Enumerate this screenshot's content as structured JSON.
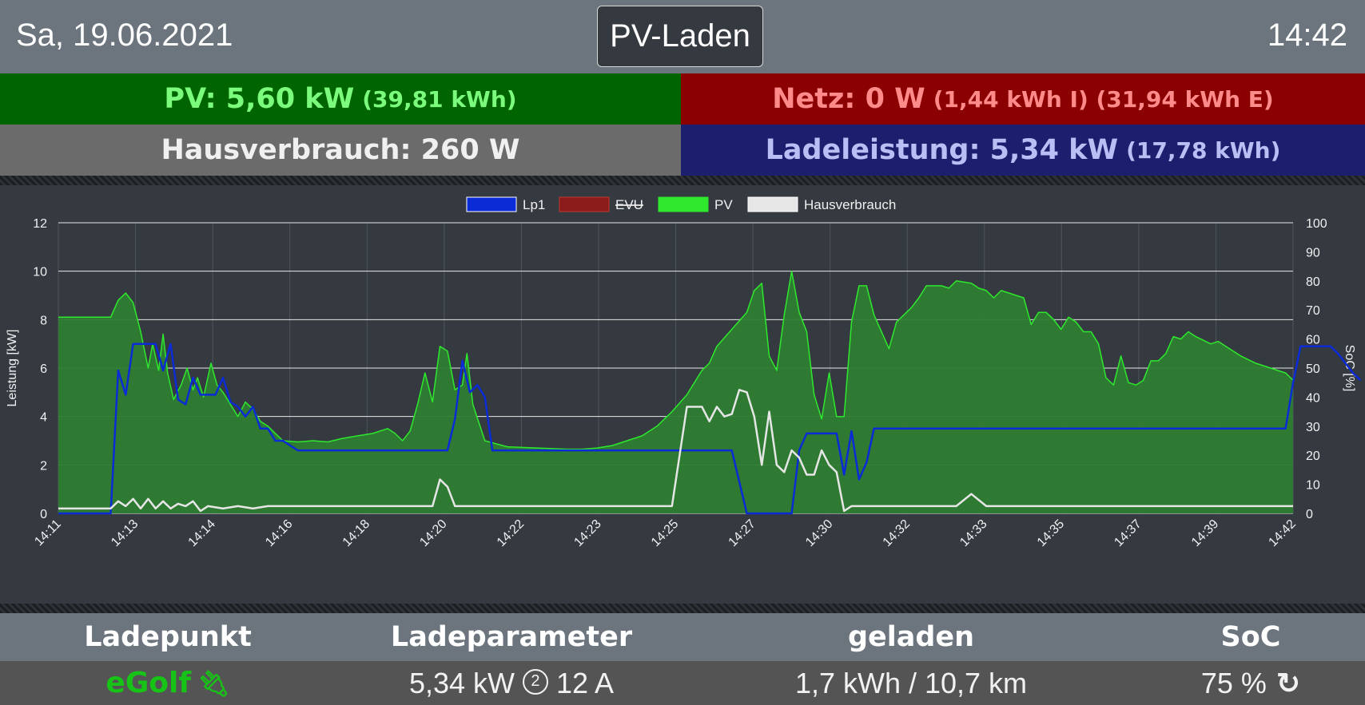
{
  "header": {
    "date": "Sa, 19.06.2021",
    "mode": "PV-Laden",
    "time": "14:42"
  },
  "tiles": {
    "pv": {
      "label": "PV: 5,60 kW",
      "extra": "(39,81 kWh)"
    },
    "netz": {
      "label": "Netz: 0 W",
      "extra": "(1,44 kWh I) (31,94 kWh E)"
    },
    "haus": {
      "label": "Hausverbrauch: 260 W"
    },
    "lade": {
      "label": "Ladeleistung: 5,34 kW",
      "extra": "(17,78 kWh)"
    }
  },
  "table": {
    "headers": [
      "Ladepunkt",
      "Ladeparameter",
      "geladen",
      "SoC"
    ],
    "row": {
      "ladepunkt": "eGolf",
      "power": "5,34 kW",
      "phases": "2",
      "current": "12 A",
      "geladen": "1,7 kWh / 10,7 km",
      "soc": "75 %"
    }
  },
  "colors": {
    "pv": "#2ee82e",
    "pv_fill": "#2e7d32",
    "lp1": "#0a2bd6",
    "evu": "#8b1a1a",
    "haus": "#e6e6e6"
  },
  "icons": {
    "plug": "plug-icon",
    "phase": "circled-number-icon",
    "refresh": "refresh-icon"
  },
  "chart_data": {
    "type": "line",
    "legend": [
      {
        "name": "Lp1",
        "color": "#0a2bd6",
        "hidden": false
      },
      {
        "name": "EVU",
        "color": "#8b1a1a",
        "hidden": true
      },
      {
        "name": "PV",
        "color": "#2ee82e",
        "hidden": false
      },
      {
        "name": "Hausverbrauch",
        "color": "#e6e6e6",
        "hidden": false
      }
    ],
    "legend_position": "top",
    "ylabel": "Leistung [kW]",
    "y2label": "SoC [%]",
    "ylim": [
      0,
      12
    ],
    "y2lim": [
      0,
      100
    ],
    "yticks": [
      0,
      2,
      4,
      6,
      8,
      10,
      12
    ],
    "y2ticks": [
      0,
      10,
      20,
      30,
      40,
      50,
      60,
      70,
      80,
      90,
      100
    ],
    "xticks": [
      "14:11",
      "14:13",
      "14:14",
      "14:16",
      "14:18",
      "14:20",
      "14:22",
      "14:23",
      "14:25",
      "14:27",
      "14:30",
      "14:32",
      "14:33",
      "14:35",
      "14:37",
      "14:39",
      "14:42"
    ],
    "grid": true,
    "series": [
      {
        "name": "PV",
        "fill": true,
        "values": [
          [
            0,
            8.1
          ],
          [
            3.5,
            8.1
          ],
          [
            4,
            8.8
          ],
          [
            4.5,
            9.1
          ],
          [
            5,
            8.7
          ],
          [
            5.5,
            7.5
          ],
          [
            6,
            6.0
          ],
          [
            6.3,
            7.0
          ],
          [
            6.7,
            5.9
          ],
          [
            7,
            7.4
          ],
          [
            7.3,
            5.8
          ],
          [
            7.7,
            4.7
          ],
          [
            8.2,
            5.3
          ],
          [
            8.6,
            6.0
          ],
          [
            9,
            5.1
          ],
          [
            9.3,
            5.6
          ],
          [
            9.7,
            4.8
          ],
          [
            10.2,
            6.2
          ],
          [
            10.6,
            5.3
          ],
          [
            11,
            5.0
          ],
          [
            11.5,
            4.5
          ],
          [
            12,
            4.0
          ],
          [
            12.5,
            4.6
          ],
          [
            13,
            4.3
          ],
          [
            13.5,
            3.8
          ],
          [
            14,
            3.6
          ],
          [
            14.5,
            3.3
          ],
          [
            15,
            3.0
          ],
          [
            16,
            2.95
          ],
          [
            17,
            3.0
          ],
          [
            18,
            2.95
          ],
          [
            19,
            3.1
          ],
          [
            20,
            3.2
          ],
          [
            21,
            3.3
          ],
          [
            22,
            3.5
          ],
          [
            22.5,
            3.3
          ],
          [
            23,
            3.0
          ],
          [
            23.5,
            3.4
          ],
          [
            24,
            4.5
          ],
          [
            24.5,
            5.8
          ],
          [
            25,
            4.6
          ],
          [
            25.5,
            6.9
          ],
          [
            26,
            6.7
          ],
          [
            26.5,
            5.1
          ],
          [
            27,
            5.3
          ],
          [
            27.3,
            6.6
          ],
          [
            27.7,
            4.5
          ],
          [
            28.5,
            3.0
          ],
          [
            30,
            2.75
          ],
          [
            32,
            2.7
          ],
          [
            34,
            2.65
          ],
          [
            35,
            2.65
          ],
          [
            36,
            2.7
          ],
          [
            37,
            2.8
          ],
          [
            38,
            3.0
          ],
          [
            39,
            3.2
          ],
          [
            40,
            3.6
          ],
          [
            41,
            4.2
          ],
          [
            42,
            4.9
          ],
          [
            43,
            5.9
          ],
          [
            43.5,
            6.2
          ],
          [
            44,
            6.9
          ],
          [
            45,
            7.6
          ],
          [
            46,
            8.3
          ],
          [
            46.5,
            9.2
          ],
          [
            47,
            9.5
          ],
          [
            47.5,
            6.5
          ],
          [
            48,
            5.9
          ],
          [
            48.5,
            8.2
          ],
          [
            49,
            10.0
          ],
          [
            49.5,
            8.3
          ],
          [
            50,
            7.5
          ],
          [
            50.5,
            4.9
          ],
          [
            51,
            3.9
          ],
          [
            51.5,
            5.8
          ],
          [
            52,
            4.0
          ],
          [
            52.5,
            4.0
          ],
          [
            53,
            7.9
          ],
          [
            53.5,
            9.4
          ],
          [
            54,
            9.4
          ],
          [
            54.5,
            8.2
          ],
          [
            55,
            7.5
          ],
          [
            55.5,
            6.8
          ],
          [
            56,
            7.9
          ],
          [
            57,
            8.5
          ],
          [
            57.5,
            8.9
          ],
          [
            58,
            9.4
          ],
          [
            59,
            9.4
          ],
          [
            59.5,
            9.3
          ],
          [
            60,
            9.6
          ],
          [
            61,
            9.5
          ],
          [
            61.5,
            9.3
          ],
          [
            62,
            9.2
          ],
          [
            62.5,
            8.9
          ],
          [
            63,
            9.2
          ],
          [
            64,
            9.0
          ],
          [
            64.5,
            8.9
          ],
          [
            65,
            7.8
          ],
          [
            65.5,
            8.3
          ],
          [
            66,
            8.3
          ],
          [
            66.5,
            8.0
          ],
          [
            67,
            7.6
          ],
          [
            67.5,
            8.1
          ],
          [
            68,
            7.9
          ],
          [
            68.5,
            7.5
          ],
          [
            69,
            7.5
          ],
          [
            69.5,
            7.0
          ],
          [
            70,
            5.6
          ],
          [
            70.5,
            5.3
          ],
          [
            71,
            6.5
          ],
          [
            71.5,
            5.4
          ],
          [
            72,
            5.3
          ],
          [
            72.5,
            5.5
          ],
          [
            73,
            6.3
          ],
          [
            73.5,
            6.3
          ],
          [
            74,
            6.6
          ],
          [
            74.5,
            7.3
          ],
          [
            75,
            7.2
          ],
          [
            75.5,
            7.5
          ],
          [
            76,
            7.3
          ],
          [
            77,
            7.0
          ],
          [
            77.5,
            7.1
          ],
          [
            78,
            6.9
          ],
          [
            79,
            6.5
          ],
          [
            80,
            6.2
          ],
          [
            81,
            6.0
          ],
          [
            82,
            5.8
          ],
          [
            82.5,
            5.5
          ]
        ]
      },
      {
        "name": "Lp1",
        "values": [
          [
            0,
            0
          ],
          [
            3.5,
            0
          ],
          [
            4,
            5.9
          ],
          [
            4.5,
            4.9
          ],
          [
            5,
            7.0
          ],
          [
            6.5,
            7.0
          ],
          [
            7,
            5.9
          ],
          [
            7.5,
            7.0
          ],
          [
            8,
            4.7
          ],
          [
            8.5,
            4.5
          ],
          [
            9,
            5.6
          ],
          [
            9.5,
            4.9
          ],
          [
            10.5,
            4.9
          ],
          [
            11,
            5.6
          ],
          [
            11.5,
            4.6
          ],
          [
            12,
            4.4
          ],
          [
            12.5,
            4.0
          ],
          [
            13,
            4.4
          ],
          [
            13.5,
            3.5
          ],
          [
            14,
            3.5
          ],
          [
            14.5,
            3.0
          ],
          [
            15,
            3.0
          ],
          [
            16,
            2.6
          ],
          [
            26,
            2.6
          ],
          [
            26.5,
            3.9
          ],
          [
            27,
            6.3
          ],
          [
            27.5,
            5.0
          ],
          [
            28,
            5.3
          ],
          [
            28.5,
            4.8
          ],
          [
            29,
            2.6
          ],
          [
            33,
            2.6
          ],
          [
            41,
            2.6
          ],
          [
            42,
            2.6
          ],
          [
            45,
            2.6
          ],
          [
            46,
            0
          ],
          [
            49,
            0
          ],
          [
            49.5,
            2.6
          ],
          [
            50,
            3.3
          ],
          [
            52,
            3.3
          ],
          [
            52.5,
            1.6
          ],
          [
            53,
            3.4
          ],
          [
            53.5,
            1.4
          ],
          [
            54,
            2.1
          ],
          [
            54.5,
            3.5
          ],
          [
            55,
            3.5
          ],
          [
            56,
            3.5
          ],
          [
            62,
            3.5
          ],
          [
            80,
            3.5
          ],
          [
            82,
            3.5
          ],
          [
            83,
            6.9
          ],
          [
            84,
            6.9
          ],
          [
            85,
            6.9
          ],
          [
            85.5,
            6.6
          ],
          [
            86,
            6.2
          ],
          [
            86.5,
            5.8
          ],
          [
            87,
            5.5
          ],
          [
            82.5,
            5.4
          ]
        ]
      },
      {
        "name": "Hausverbrauch",
        "values": [
          [
            0,
            0.2
          ],
          [
            3.5,
            0.2
          ],
          [
            4,
            0.5
          ],
          [
            4.5,
            0.3
          ],
          [
            5,
            0.6
          ],
          [
            5.5,
            0.2
          ],
          [
            6,
            0.6
          ],
          [
            6.5,
            0.2
          ],
          [
            7,
            0.5
          ],
          [
            7.5,
            0.2
          ],
          [
            8,
            0.4
          ],
          [
            8.5,
            0.3
          ],
          [
            9,
            0.5
          ],
          [
            9.5,
            0.1
          ],
          [
            10,
            0.3
          ],
          [
            11,
            0.2
          ],
          [
            12,
            0.3
          ],
          [
            13,
            0.2
          ],
          [
            14,
            0.3
          ],
          [
            16,
            0.3
          ],
          [
            20,
            0.3
          ],
          [
            24,
            0.3
          ],
          [
            25,
            0.3
          ],
          [
            25.5,
            1.4
          ],
          [
            26,
            1.1
          ],
          [
            26.5,
            0.3
          ],
          [
            30,
            0.3
          ],
          [
            40,
            0.3
          ],
          [
            41,
            0.3
          ],
          [
            42,
            4.4
          ],
          [
            43,
            4.4
          ],
          [
            43.5,
            3.8
          ],
          [
            44,
            4.4
          ],
          [
            44.5,
            4.0
          ],
          [
            45,
            4.1
          ],
          [
            45.5,
            5.1
          ],
          [
            46,
            5.0
          ],
          [
            46.5,
            4.0
          ],
          [
            47,
            2.0
          ],
          [
            47.5,
            4.2
          ],
          [
            48,
            2.0
          ],
          [
            48.5,
            1.7
          ],
          [
            49,
            2.6
          ],
          [
            49.5,
            2.3
          ],
          [
            50,
            1.6
          ],
          [
            50.5,
            1.6
          ],
          [
            51,
            2.6
          ],
          [
            51.5,
            2.0
          ],
          [
            52,
            1.7
          ],
          [
            52.5,
            0.1
          ],
          [
            53,
            0.3
          ],
          [
            55,
            0.3
          ],
          [
            60,
            0.3
          ],
          [
            61,
            0.8
          ],
          [
            62,
            0.3
          ],
          [
            70,
            0.3
          ],
          [
            82.5,
            0.3
          ]
        ]
      }
    ]
  }
}
